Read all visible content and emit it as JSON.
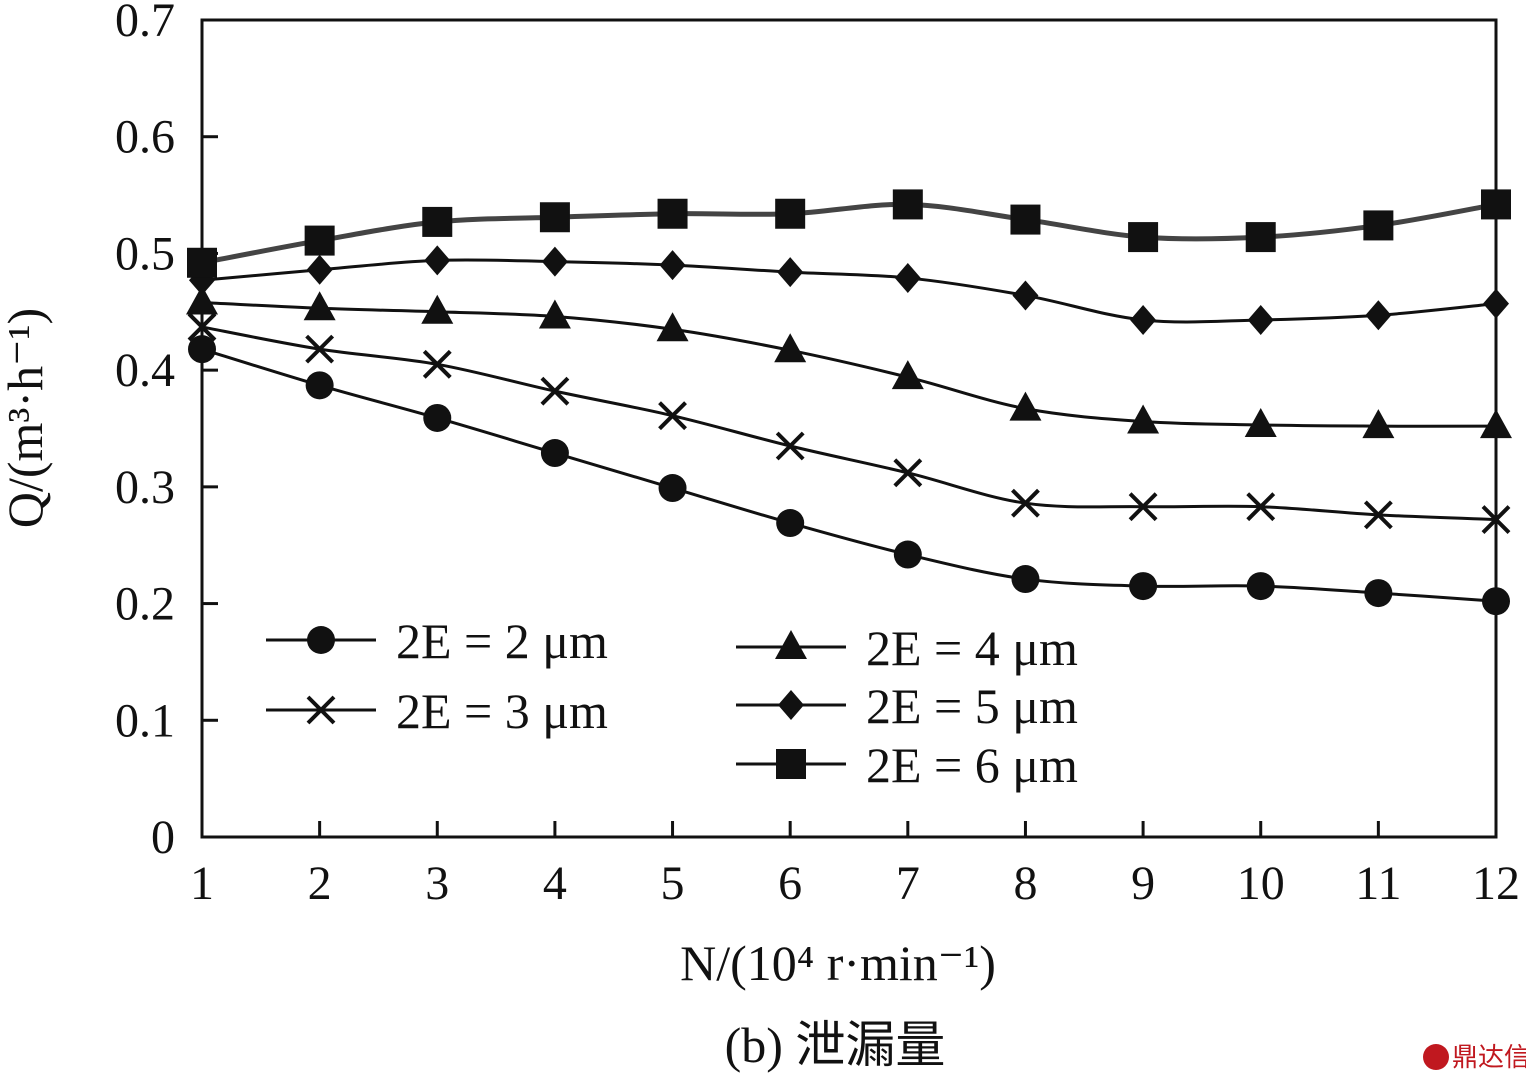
{
  "chart_data": {
    "type": "line",
    "caption": "(b) 泄漏量",
    "xlabel": "N/(10⁴ r·min⁻¹)",
    "ylabel": "Q/(m³·h⁻¹)",
    "xlim": [
      1,
      12
    ],
    "ylim": [
      0,
      0.7
    ],
    "x": [
      1,
      2,
      3,
      4,
      5,
      6,
      7,
      8,
      9,
      10,
      11,
      12
    ],
    "x_ticks": [
      "1",
      "2",
      "3",
      "4",
      "5",
      "6",
      "7",
      "8",
      "9",
      "10",
      "11",
      "12"
    ],
    "y_ticks": [
      "0",
      "0.1",
      "0.2",
      "0.3",
      "0.4",
      "0.5",
      "0.6",
      "0.7"
    ],
    "grid": false,
    "legend_position": "bottom-left",
    "series": [
      {
        "name": "2E = 2 μm",
        "marker": "circle",
        "values": [
          0.418,
          0.387,
          0.359,
          0.329,
          0.299,
          0.269,
          0.242,
          0.221,
          0.215,
          0.215,
          0.209,
          0.202
        ]
      },
      {
        "name": "2E = 3 μm",
        "marker": "x",
        "values": [
          0.437,
          0.418,
          0.405,
          0.382,
          0.361,
          0.335,
          0.312,
          0.286,
          0.283,
          0.283,
          0.276,
          0.272
        ]
      },
      {
        "name": "2E = 4 μm",
        "marker": "triangle",
        "values": [
          0.458,
          0.453,
          0.45,
          0.446,
          0.435,
          0.417,
          0.394,
          0.367,
          0.356,
          0.353,
          0.352,
          0.352
        ]
      },
      {
        "name": "2E = 5 μm",
        "marker": "diamond",
        "values": [
          0.477,
          0.486,
          0.494,
          0.493,
          0.49,
          0.484,
          0.479,
          0.464,
          0.443,
          0.443,
          0.447,
          0.457
        ]
      },
      {
        "name": "2E = 6 μm",
        "marker": "square",
        "values": [
          0.492,
          0.511,
          0.527,
          0.531,
          0.534,
          0.534,
          0.542,
          0.529,
          0.514,
          0.514,
          0.524,
          0.542
        ]
      }
    ]
  },
  "watermark": "鼎达信"
}
